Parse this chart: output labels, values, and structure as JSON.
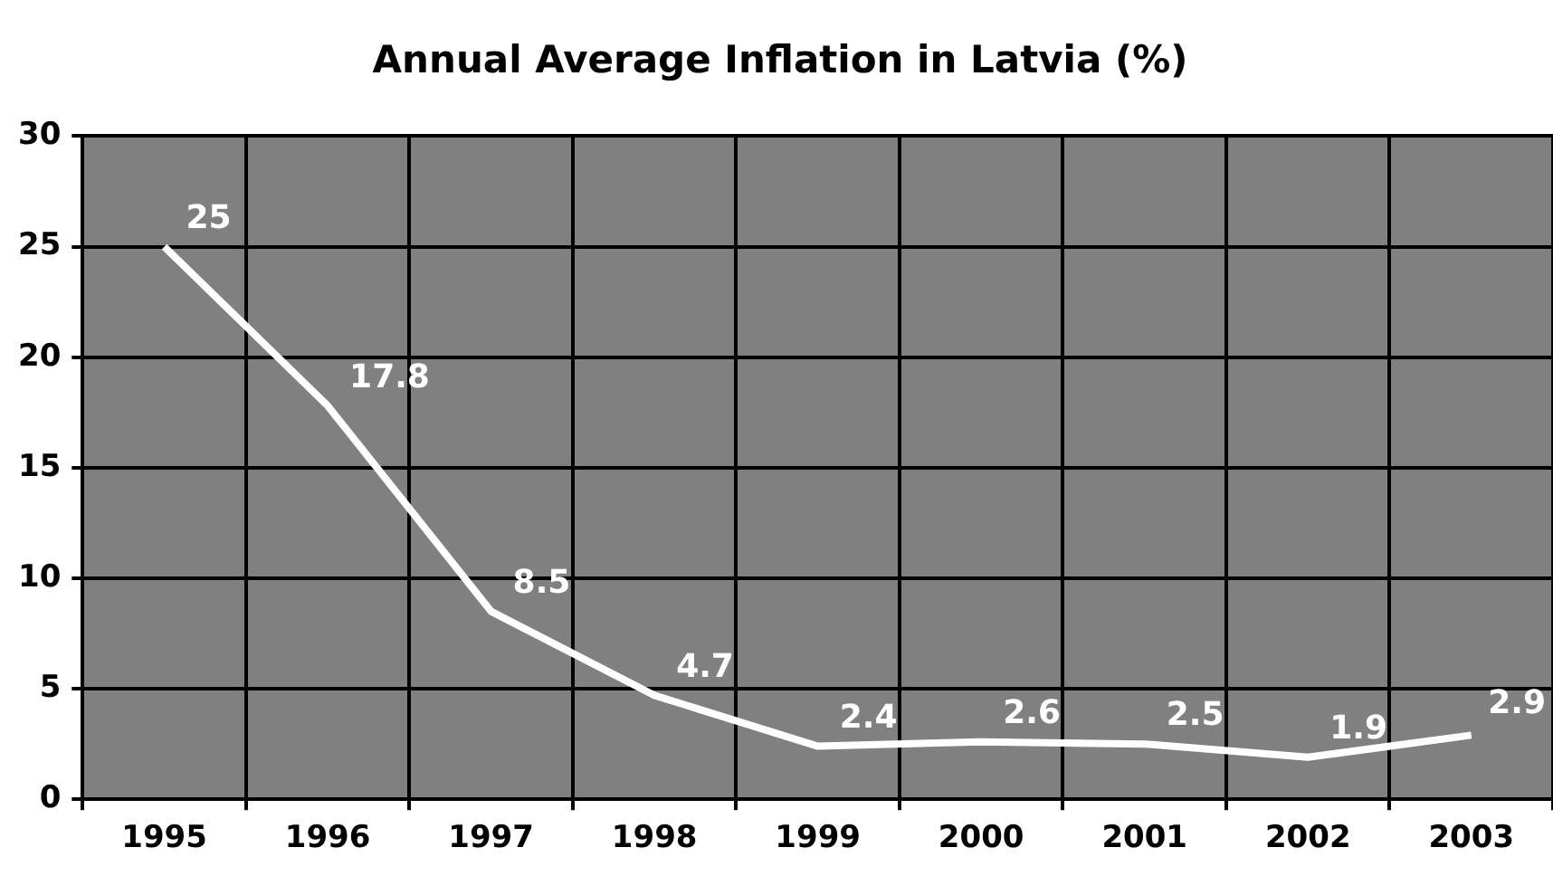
{
  "chart_data": {
    "type": "line",
    "title": "Annual Average Inflation in Latvia (%)",
    "categories": [
      "1995",
      "1996",
      "1997",
      "1998",
      "1999",
      "2000",
      "2001",
      "2002",
      "2003"
    ],
    "series": [
      {
        "color": "#ffffff",
        "values": [
          25,
          17.8,
          8.5,
          4.7,
          2.4,
          2.6,
          2.5,
          1.9,
          2.9
        ]
      }
    ],
    "ylim": [
      0,
      30
    ],
    "yticks": [
      0,
      5,
      10,
      15,
      20,
      25,
      30
    ],
    "grid": true,
    "legend": false,
    "marker": "none",
    "line_style": "solid",
    "data_labels": true
  }
}
